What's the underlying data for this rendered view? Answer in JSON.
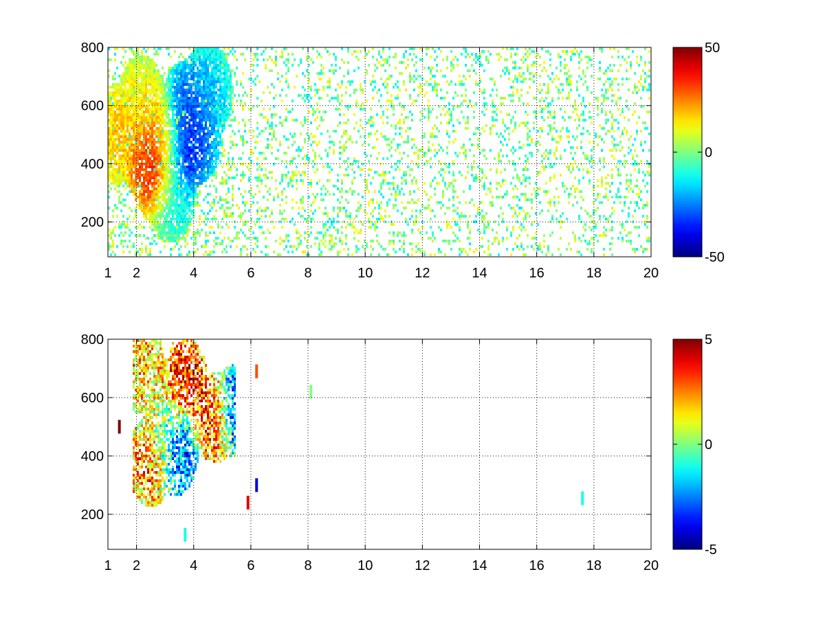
{
  "chart_data": [
    {
      "type": "heatmap",
      "title": "",
      "xlabel": "",
      "ylabel": "",
      "xlim": [
        1,
        20
      ],
      "ylim": [
        80,
        800
      ],
      "x_ticks": [
        1,
        2,
        4,
        6,
        8,
        10,
        12,
        14,
        16,
        18,
        20
      ],
      "x_tick_labels": [
        "1",
        "2",
        "4",
        "6",
        "8",
        "10",
        "12",
        "14",
        "16",
        "18",
        "20"
      ],
      "y_ticks": [
        200,
        400,
        600,
        800
      ],
      "y_tick_labels": [
        "200",
        "400",
        "600",
        "800"
      ],
      "grid": true,
      "colormap": "jet",
      "colorbar": {
        "range": [
          -50,
          50
        ],
        "tick_labels": [
          "50",
          "0",
          "-50"
        ],
        "ticks": [
          50,
          0,
          -50
        ]
      },
      "features": [
        {
          "x": 2.7,
          "y": 370,
          "value": 45
        },
        {
          "x": 2.4,
          "y": 430,
          "value": 30
        },
        {
          "x": 3.0,
          "y": 500,
          "value": 25
        },
        {
          "x": 2.2,
          "y": 600,
          "value": 15
        },
        {
          "x": 3.6,
          "y": 450,
          "value": -45
        },
        {
          "x": 3.7,
          "y": 580,
          "value": -35
        },
        {
          "x": 4.1,
          "y": 500,
          "value": -30
        },
        {
          "x": 3.2,
          "y": 300,
          "value": -15
        },
        {
          "x": 4.5,
          "y": 650,
          "value": -20
        },
        {
          "x": 1.3,
          "y": 500,
          "value": 20
        }
      ],
      "background_noise": {
        "x_range": [
          5.5,
          20
        ],
        "value_range": [
          -15,
          15
        ],
        "density": 0.35
      }
    },
    {
      "type": "heatmap",
      "title": "",
      "xlabel": "",
      "ylabel": "",
      "xlim": [
        1,
        20
      ],
      "ylim": [
        80,
        800
      ],
      "x_ticks": [
        1,
        2,
        4,
        6,
        8,
        10,
        12,
        14,
        16,
        18,
        20
      ],
      "x_tick_labels": [
        "1",
        "2",
        "4",
        "6",
        "8",
        "10",
        "12",
        "14",
        "16",
        "18",
        "20"
      ],
      "y_ticks": [
        200,
        400,
        600,
        800
      ],
      "y_tick_labels": [
        "200",
        "400",
        "600",
        "800"
      ],
      "grid": true,
      "colormap": "jet",
      "colorbar": {
        "range": [
          -5,
          5
        ],
        "tick_labels": [
          "5",
          "0",
          "-5"
        ],
        "ticks": [
          5,
          0,
          -5
        ]
      },
      "features": [
        {
          "x": 3.7,
          "y": 650,
          "value": 4.5
        },
        {
          "x": 4.8,
          "y": 530,
          "value": 4.8
        },
        {
          "x": 2.5,
          "y": 380,
          "value": 3.5
        },
        {
          "x": 3.0,
          "y": 450,
          "value": 0
        },
        {
          "x": 3.4,
          "y": 420,
          "value": -4
        },
        {
          "x": 2.2,
          "y": 700,
          "value": 2
        },
        {
          "x": 5.4,
          "y": 550,
          "value": -5
        }
      ],
      "isolated_cells": [
        {
          "x": 1.4,
          "y": 500,
          "value": 5
        },
        {
          "x": 6.2,
          "y": 690,
          "value": 3
        },
        {
          "x": 6.2,
          "y": 300,
          "value": -4
        },
        {
          "x": 5.9,
          "y": 240,
          "value": 4
        },
        {
          "x": 8.1,
          "y": 620,
          "value": 0
        },
        {
          "x": 17.6,
          "y": 255,
          "value": -1
        },
        {
          "x": 3.7,
          "y": 130,
          "value": -1
        }
      ]
    }
  ]
}
